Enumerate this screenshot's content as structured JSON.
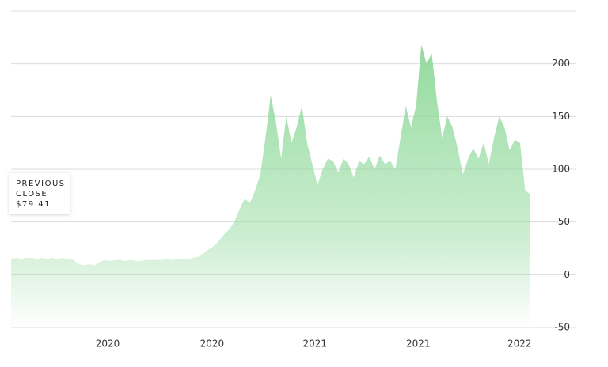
{
  "chart_data": {
    "type": "area",
    "color": "#8fd99a",
    "x": [
      0,
      1,
      2,
      3,
      4,
      5,
      6,
      7,
      8,
      9,
      10,
      11,
      12,
      13,
      14,
      15,
      16,
      17,
      18,
      19,
      20,
      21,
      22,
      23,
      24,
      25,
      26,
      27,
      28,
      29,
      30,
      31,
      32,
      33,
      34,
      35,
      36,
      37,
      38,
      39,
      40,
      41,
      42,
      43,
      44,
      45,
      46,
      47,
      48,
      49,
      50,
      51,
      52,
      53,
      54,
      55,
      56,
      57,
      58,
      59,
      60,
      61,
      62,
      63,
      64,
      65,
      66,
      67,
      68,
      69,
      70,
      71,
      72,
      73,
      74,
      75,
      76,
      77,
      78,
      79,
      80,
      81,
      82,
      83,
      84,
      85,
      86,
      87,
      88,
      89,
      90,
      91,
      92,
      93,
      94,
      95,
      96,
      97,
      98,
      99,
      100
    ],
    "values": [
      15,
      16,
      15,
      16,
      16,
      15,
      16,
      15,
      16,
      15,
      16,
      15,
      14,
      10,
      9,
      10,
      9,
      12,
      14,
      13,
      14,
      14,
      13,
      14,
      13,
      13,
      14,
      14,
      14,
      14,
      15,
      14,
      15,
      15,
      14,
      16,
      17,
      20,
      24,
      27,
      32,
      38,
      43,
      50,
      62,
      72,
      68,
      80,
      95,
      130,
      170,
      145,
      110,
      150,
      125,
      140,
      160,
      125,
      105,
      85,
      100,
      110,
      108,
      97,
      110,
      105,
      92,
      108,
      105,
      112,
      100,
      113,
      105,
      108,
      100,
      130,
      160,
      140,
      160,
      218,
      200,
      210,
      165,
      130,
      150,
      140,
      120,
      95,
      110,
      120,
      110,
      125,
      105,
      130,
      150,
      140,
      118,
      128,
      125,
      80,
      76
    ],
    "xlim": [
      0,
      100
    ],
    "xticks": [
      {
        "value": 18.6,
        "label": "2020"
      },
      {
        "value": 38.7,
        "label": "2020"
      },
      {
        "value": 58.5,
        "label": "2021"
      },
      {
        "value": 78.4,
        "label": "2021"
      },
      {
        "value": 97.9,
        "label": "2022"
      }
    ],
    "ylim": [
      -50,
      250
    ],
    "yticks": [
      -50,
      0,
      50,
      100,
      150,
      200
    ],
    "grid": true,
    "reference_line": {
      "label": "PREVIOUS CLOSE",
      "value": 79.41,
      "value_label": "$79.41"
    }
  }
}
